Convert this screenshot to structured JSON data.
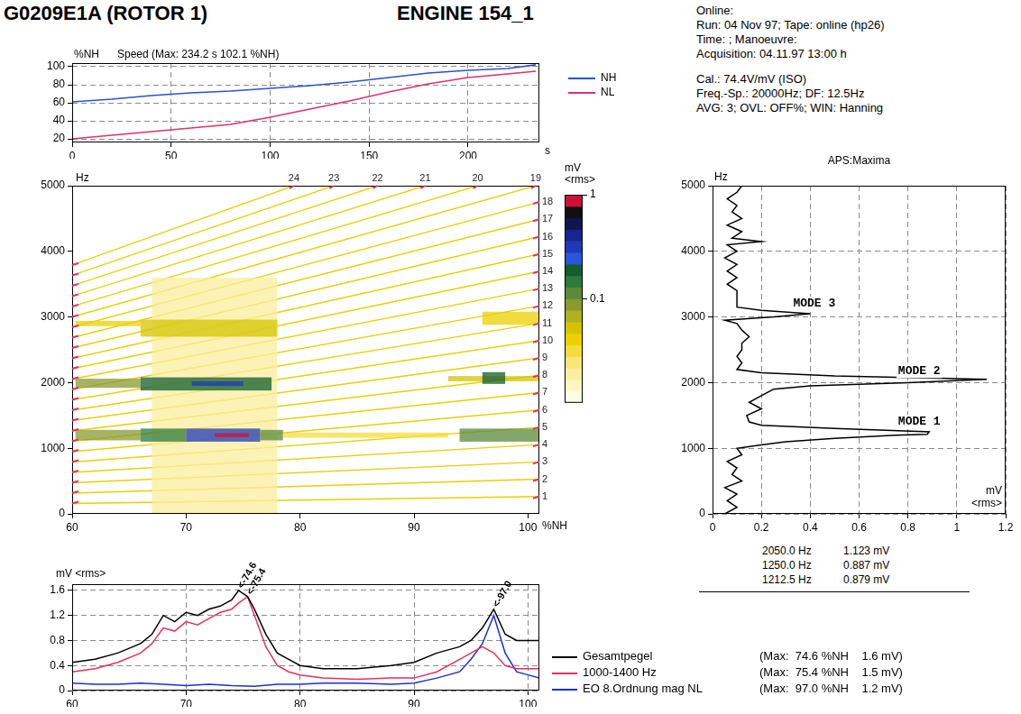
{
  "header": {
    "title": "G0209E1A (ROTOR 1)",
    "engine": "ENGINE 154_1",
    "info": [
      [
        "Online:",
        "Run: 04 Nov 97; Tape: online (hp26)",
        "Time: ; Manoeuvre:",
        "Acquisition: 04.11.97 13:00 h"
      ],
      [
        "Cal.: 74.4V/mV (ISO)",
        "Freq.-Sp.: 20000Hz; DF: 12.5Hz",
        "AVG: 3; OVL: OFF%; WIN: Hanning"
      ]
    ]
  },
  "chart_data": [
    {
      "type": "line",
      "title": "Speed (Max: 234.2 s 102.1 %NH)",
      "y_label": "%NH",
      "x_label": "s",
      "xlim": [
        0,
        236
      ],
      "xticks": [
        0,
        50,
        100,
        150,
        200
      ],
      "ylim": [
        16,
        104
      ],
      "yticks": [
        20,
        40,
        60,
        80,
        100
      ],
      "grid": true,
      "legend": "right",
      "series": [
        {
          "name": "NH",
          "color": "#2b4fd8",
          "x": [
            0,
            20,
            40,
            60,
            80,
            100,
            120,
            140,
            160,
            180,
            200,
            220,
            234.2
          ],
          "values": [
            61,
            64,
            68,
            71,
            73,
            76,
            79,
            83,
            88,
            93,
            96,
            98,
            102.1
          ]
        },
        {
          "name": "NL",
          "color": "#e0306a",
          "x": [
            0,
            20,
            40,
            60,
            80,
            100,
            120,
            140,
            160,
            180,
            200,
            220,
            234.2
          ],
          "values": [
            20,
            24,
            28,
            32,
            36,
            44,
            53,
            62,
            72,
            81,
            88,
            92,
            95
          ]
        }
      ]
    },
    {
      "type": "campbell",
      "x_label": "%NH",
      "y_label": "Hz",
      "xlim": [
        60,
        101
      ],
      "xticks": [
        60,
        70,
        80,
        90,
        100
      ],
      "ylim": [
        0,
        5000
      ],
      "yticks": [
        0,
        1000,
        2000,
        3000,
        4000,
        5000
      ],
      "grid": false,
      "order_lines": {
        "color": "#e8d000",
        "x": [
          60,
          101
        ],
        "series": [
          {
            "name": "1",
            "values": [
              158,
              264
            ]
          },
          {
            "name": "2",
            "values": [
              316,
              528
            ]
          },
          {
            "name": "3",
            "values": [
              474,
              792
            ]
          },
          {
            "name": "4",
            "values": [
              632,
              1056
            ]
          },
          {
            "name": "5",
            "values": [
              790,
              1320
            ]
          },
          {
            "name": "6",
            "values": [
              948,
              1584
            ]
          },
          {
            "name": "7",
            "values": [
              1106,
              1848
            ]
          },
          {
            "name": "8",
            "values": [
              1264,
              2112
            ]
          },
          {
            "name": "9",
            "values": [
              1422,
              2376
            ]
          },
          {
            "name": "10",
            "values": [
              1580,
              2640
            ]
          },
          {
            "name": "11",
            "values": [
              1738,
              2904
            ]
          },
          {
            "name": "12",
            "values": [
              1896,
              3168
            ]
          },
          {
            "name": "13",
            "values": [
              2054,
              3432
            ]
          },
          {
            "name": "14",
            "values": [
              2212,
              3696
            ]
          },
          {
            "name": "15",
            "values": [
              2370,
              3960
            ]
          },
          {
            "name": "16",
            "values": [
              2528,
              4224
            ]
          },
          {
            "name": "17",
            "values": [
              2686,
              4488
            ]
          },
          {
            "name": "18",
            "values": [
              2844,
              4752
            ]
          },
          {
            "name": "19",
            "values": [
              3002,
              5016
            ]
          },
          {
            "name": "20",
            "values": [
              3160,
              5280
            ]
          },
          {
            "name": "21",
            "values": [
              3318,
              5544
            ]
          },
          {
            "name": "22",
            "values": [
              3476,
              5808
            ]
          },
          {
            "name": "23",
            "values": [
              3634,
              6072
            ]
          },
          {
            "name": "24",
            "values": [
              3792,
              6336
            ]
          }
        ]
      },
      "cells": [
        {
          "x": [
            67,
            78
          ],
          "y": [
            0,
            3600
          ],
          "value": 0.02
        },
        {
          "x": [
            60.3,
            66
          ],
          "y": [
            1120,
            1280
          ],
          "value": 0.08
        },
        {
          "x": [
            66,
            70
          ],
          "y": [
            1100,
            1300
          ],
          "value": 0.15
        },
        {
          "x": [
            70,
            76.5
          ],
          "y": [
            1100,
            1300
          ],
          "value": 0.3
        },
        {
          "x": [
            72.5,
            75.5
          ],
          "y": [
            1170,
            1230
          ],
          "value": 0.8
        },
        {
          "x": [
            76.5,
            78.5
          ],
          "y": [
            1120,
            1280
          ],
          "value": 0.12
        },
        {
          "x": [
            78.5,
            93
          ],
          "y": [
            1160,
            1240
          ],
          "value": 0.03
        },
        {
          "x": [
            94,
            101
          ],
          "y": [
            1100,
            1300
          ],
          "value": 0.1
        },
        {
          "x": [
            60.3,
            66
          ],
          "y": [
            1920,
            2060
          ],
          "value": 0.09
        },
        {
          "x": [
            66,
            77.5
          ],
          "y": [
            1880,
            2080
          ],
          "value": 0.2
        },
        {
          "x": [
            70.5,
            75
          ],
          "y": [
            1950,
            2020
          ],
          "value": 0.35
        },
        {
          "x": [
            93,
            101
          ],
          "y": [
            2020,
            2100
          ],
          "value": 0.05
        },
        {
          "x": [
            60.3,
            66
          ],
          "y": [
            2860,
            2940
          ],
          "value": 0.04
        },
        {
          "x": [
            66,
            78
          ],
          "y": [
            2700,
            2960
          ],
          "value": 0.05
        },
        {
          "x": [
            96,
            101
          ],
          "y": [
            2880,
            3080
          ],
          "value": 0.04
        },
        {
          "x": [
            96,
            98
          ],
          "y": [
            1980,
            2160
          ],
          "value": 0.2
        }
      ],
      "colorbar": {
        "title": "mV <rms>",
        "range": [
          0.01,
          1
        ],
        "ticks": [
          0.1,
          1
        ],
        "log": true,
        "colors": [
          "#fffbe6",
          "#fdf5c4",
          "#fbee9e",
          "#f8e676",
          "#f5dc3c",
          "#ecd000",
          "#d4c400",
          "#b0b020",
          "#8a9a30",
          "#5a8a3a",
          "#2e7a3a",
          "#125e2e",
          "#2a56d8",
          "#1e3ab8",
          "#152690",
          "#0e1650",
          "#101010",
          "#d0103a"
        ]
      }
    },
    {
      "type": "line",
      "title": "APS:Maxima",
      "x_label": "mV <rms>",
      "y_label": "Hz",
      "xlim": [
        0,
        1.2
      ],
      "xticks": [
        0,
        0.2,
        0.4,
        0.6,
        0.8,
        1,
        1.2
      ],
      "ylim": [
        0,
        5000
      ],
      "yticks": [
        0,
        1000,
        2000,
        3000,
        4000,
        5000
      ],
      "grid": true,
      "series": [
        {
          "color": "#000000",
          "y": [
            0,
            100,
            200,
            300,
            400,
            500,
            600,
            700,
            800,
            900,
            1000,
            1050,
            1100,
            1150,
            1200,
            1212.5,
            1250,
            1300,
            1350,
            1400,
            1500,
            1600,
            1700,
            1800,
            1900,
            1950,
            2000,
            2050,
            2100,
            2150,
            2200,
            2300,
            2400,
            2500,
            2600,
            2700,
            2800,
            2900,
            2950,
            3000,
            3050,
            3100,
            3150,
            3200,
            3300,
            3400,
            3500,
            3600,
            3700,
            3800,
            3900,
            4000,
            4100,
            4150,
            4200,
            4300,
            4400,
            4500,
            4600,
            4700,
            4800,
            4900,
            5000
          ],
          "x": [
            0.05,
            0.1,
            0.06,
            0.1,
            0.05,
            0.12,
            0.08,
            0.1,
            0.06,
            0.12,
            0.1,
            0.2,
            0.3,
            0.5,
            0.75,
            0.879,
            0.887,
            0.5,
            0.2,
            0.15,
            0.14,
            0.2,
            0.15,
            0.2,
            0.25,
            0.4,
            0.8,
            1.123,
            0.5,
            0.2,
            0.1,
            0.12,
            0.1,
            0.12,
            0.12,
            0.15,
            0.12,
            0.1,
            0.05,
            0.25,
            0.4,
            0.2,
            0.1,
            0.1,
            0.1,
            0.1,
            0.06,
            0.1,
            0.06,
            0.1,
            0.05,
            0.1,
            0.06,
            0.2,
            0.08,
            0.12,
            0.06,
            0.12,
            0.08,
            0.1,
            0.06,
            0.1,
            0.12
          ]
        }
      ],
      "annotations": [
        {
          "text": "MODE 3",
          "x": 0.33,
          "y": 3200
        },
        {
          "text": "MODE 2",
          "x": 0.76,
          "y": 2180
        },
        {
          "text": "MODE 1",
          "x": 0.76,
          "y": 1400
        }
      ],
      "peak_table": [
        [
          "2050.0 Hz",
          "1.123 mV"
        ],
        [
          "1250.0 Hz",
          "0.887 mV"
        ],
        [
          "1212.5 Hz",
          "0.879 mV"
        ]
      ]
    },
    {
      "type": "line",
      "y_label": "mV <rms>",
      "xlim": [
        60,
        101
      ],
      "xticks": [
        60,
        70,
        80,
        90,
        100
      ],
      "ylim": [
        0,
        1.7
      ],
      "yticks": [
        0,
        0.4,
        0.8,
        1.2,
        1.6
      ],
      "grid": true,
      "legend": "right",
      "series": [
        {
          "name": "Gesamtpegel",
          "color": "#000000",
          "max_label": "(Max:  74.6 %NH    1.6 mV)",
          "x": [
            60,
            62,
            64,
            66,
            67,
            68,
            69,
            70,
            71,
            72,
            73,
            74,
            74.6,
            75.4,
            76,
            77,
            78,
            79,
            80,
            82,
            85,
            88,
            90,
            92,
            94,
            95,
            96,
            97,
            98,
            99,
            100,
            101
          ],
          "values": [
            0.45,
            0.5,
            0.6,
            0.75,
            0.9,
            1.2,
            1.1,
            1.25,
            1.2,
            1.3,
            1.35,
            1.45,
            1.6,
            1.5,
            1.3,
            0.9,
            0.6,
            0.5,
            0.4,
            0.35,
            0.35,
            0.4,
            0.45,
            0.6,
            0.7,
            0.8,
            1.0,
            1.3,
            0.9,
            0.8,
            0.8,
            0.8
          ]
        },
        {
          "name": "1000-1400 Hz",
          "color": "#e8305a",
          "max_label": "(Max:  75.4 %NH    1.5 mV)",
          "x": [
            60,
            62,
            64,
            66,
            67,
            68,
            69,
            70,
            71,
            72,
            73,
            74,
            74.6,
            75.4,
            76,
            77,
            78,
            79,
            80,
            82,
            85,
            88,
            90,
            92,
            94,
            95,
            96,
            97,
            98,
            99,
            100,
            101
          ],
          "values": [
            0.3,
            0.35,
            0.45,
            0.6,
            0.75,
            1.0,
            0.95,
            1.1,
            1.05,
            1.15,
            1.25,
            1.3,
            1.4,
            1.5,
            1.2,
            0.7,
            0.4,
            0.3,
            0.25,
            0.2,
            0.18,
            0.2,
            0.2,
            0.3,
            0.5,
            0.6,
            0.7,
            0.6,
            0.4,
            0.35,
            0.35,
            0.35
          ]
        },
        {
          "name": "EO 8.Ordnung mag NL",
          "color": "#1a2ee0",
          "max_label": "(Max:  97.0 %NH    1.2 mV)",
          "x": [
            60,
            62,
            64,
            66,
            68,
            70,
            72,
            74,
            76,
            78,
            80,
            82,
            85,
            88,
            90,
            92,
            94,
            95,
            96,
            97,
            98,
            99,
            100,
            101
          ],
          "values": [
            0.12,
            0.1,
            0.1,
            0.12,
            0.1,
            0.08,
            0.1,
            0.08,
            0.07,
            0.1,
            0.1,
            0.12,
            0.12,
            0.1,
            0.12,
            0.2,
            0.3,
            0.5,
            0.75,
            1.2,
            0.6,
            0.3,
            0.25,
            0.2
          ]
        }
      ],
      "annotations": [
        {
          "text": "<-74.6",
          "x": 74.6,
          "y": 1.6
        },
        {
          "text": "<-75.4",
          "x": 75.4,
          "y": 1.5
        },
        {
          "text": "<-97.0",
          "x": 97.0,
          "y": 1.3
        }
      ]
    }
  ]
}
